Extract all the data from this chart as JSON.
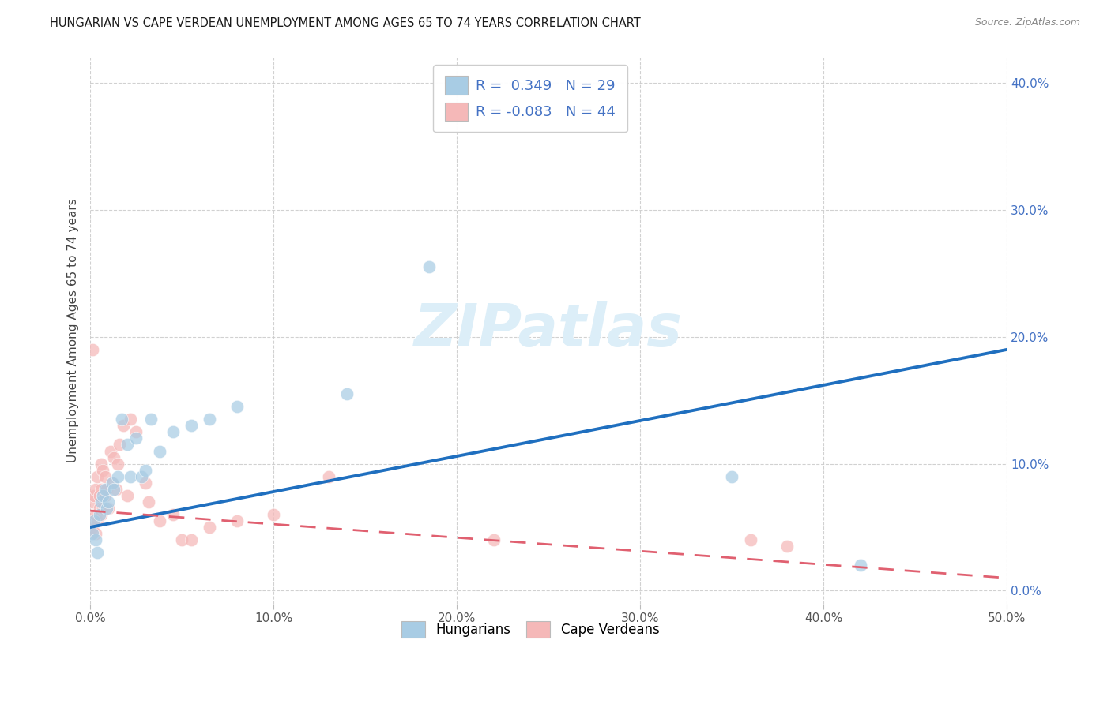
{
  "title": "HUNGARIAN VS CAPE VERDEAN UNEMPLOYMENT AMONG AGES 65 TO 74 YEARS CORRELATION CHART",
  "source": "Source: ZipAtlas.com",
  "ylabel": "Unemployment Among Ages 65 to 74 years",
  "xlim": [
    0.0,
    0.5
  ],
  "ylim": [
    -0.01,
    0.42
  ],
  "xtick_vals": [
    0.0,
    0.1,
    0.2,
    0.3,
    0.4,
    0.5
  ],
  "ytick_vals": [
    0.0,
    0.1,
    0.2,
    0.3,
    0.4
  ],
  "xtick_labels": [
    "0.0%",
    "10.0%",
    "20.0%",
    "30.0%",
    "40.0%",
    "50.0%"
  ],
  "ytick_labels": [
    "0.0%",
    "10.0%",
    "20.0%",
    "30.0%",
    "40.0%"
  ],
  "legend_R_blue": "0.349",
  "legend_N_blue": "29",
  "legend_R_pink": "-0.083",
  "legend_N_pink": "44",
  "blue_color": "#a8cce4",
  "pink_color": "#f5b8b8",
  "line_blue": "#1f6fbf",
  "line_pink": "#e06070",
  "blue_line_y0": 0.05,
  "blue_line_y1": 0.19,
  "pink_line_y0": 0.063,
  "pink_line_y1": 0.01,
  "hungarian_x": [
    0.001,
    0.002,
    0.003,
    0.004,
    0.005,
    0.006,
    0.007,
    0.008,
    0.009,
    0.01,
    0.012,
    0.013,
    0.015,
    0.017,
    0.02,
    0.022,
    0.025,
    0.028,
    0.03,
    0.033,
    0.038,
    0.045,
    0.055,
    0.065,
    0.08,
    0.14,
    0.185,
    0.35,
    0.42
  ],
  "hungarian_y": [
    0.045,
    0.055,
    0.04,
    0.03,
    0.06,
    0.07,
    0.075,
    0.08,
    0.065,
    0.07,
    0.085,
    0.08,
    0.09,
    0.135,
    0.115,
    0.09,
    0.12,
    0.09,
    0.095,
    0.135,
    0.11,
    0.125,
    0.13,
    0.135,
    0.145,
    0.155,
    0.255,
    0.09,
    0.02
  ],
  "capeverdean_x": [
    0.001,
    0.001,
    0.002,
    0.002,
    0.003,
    0.003,
    0.003,
    0.004,
    0.004,
    0.005,
    0.005,
    0.006,
    0.006,
    0.006,
    0.007,
    0.007,
    0.008,
    0.008,
    0.009,
    0.01,
    0.011,
    0.012,
    0.013,
    0.014,
    0.015,
    0.016,
    0.018,
    0.02,
    0.022,
    0.025,
    0.03,
    0.032,
    0.038,
    0.045,
    0.05,
    0.055,
    0.065,
    0.08,
    0.1,
    0.13,
    0.22,
    0.36,
    0.38,
    0.001
  ],
  "capeverdean_y": [
    0.05,
    0.07,
    0.055,
    0.075,
    0.045,
    0.06,
    0.08,
    0.055,
    0.09,
    0.065,
    0.075,
    0.06,
    0.08,
    0.1,
    0.065,
    0.095,
    0.075,
    0.09,
    0.08,
    0.065,
    0.11,
    0.085,
    0.105,
    0.08,
    0.1,
    0.115,
    0.13,
    0.075,
    0.135,
    0.125,
    0.085,
    0.07,
    0.055,
    0.06,
    0.04,
    0.04,
    0.05,
    0.055,
    0.06,
    0.09,
    0.04,
    0.04,
    0.035,
    0.19
  ]
}
